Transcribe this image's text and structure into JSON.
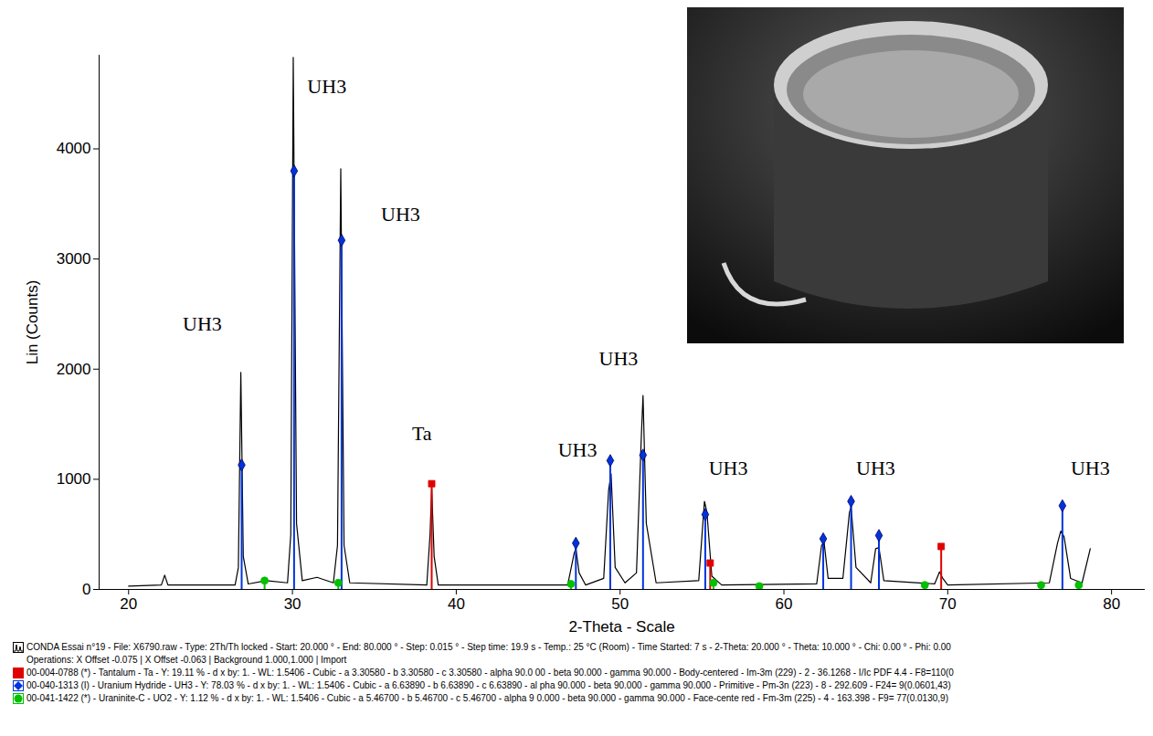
{
  "chart_data": {
    "type": "line",
    "xlabel": "2-Theta - Scale",
    "ylabel": "Lin (Counts)",
    "xlim": [
      18.2,
      82.0
    ],
    "xticks": [
      20,
      30,
      40,
      50,
      60,
      70,
      80
    ],
    "ylim": [
      0,
      4850
    ],
    "yticks": [
      0,
      1000,
      2000,
      3000,
      4000
    ],
    "grid": false,
    "caption": "Operations: X Offset -0.075 | X Offset -0.063 | Background 1.000,1.000 | Import",
    "series": [
      {
        "name": "CONDA Essai n°19 - File: X6790.raw - Type: 2Th/Th locked - Start: 20.000 ° - End: 80.000 ° - Step: 0.015 ° - Step time: 19.9 s - Temp.: 25 °C (Room) - Time Started: 7 s - 2-Theta: 20.000 ° - Theta: 10.000 ° - Chi: 0.00 ° - Phi: 0.00",
        "type": "line",
        "color": "#000000",
        "x": [
          20,
          22,
          22.2,
          22.4,
          26.5,
          26.7,
          26.85,
          27.0,
          27.3,
          28.4,
          29.7,
          29.9,
          30.05,
          30.25,
          30.6,
          31.5,
          32.5,
          32.75,
          32.95,
          33.15,
          33.5,
          38.2,
          38.4,
          38.5,
          38.65,
          38.9,
          46.8,
          47.2,
          47.3,
          47.5,
          47.9,
          49.0,
          49.3,
          49.45,
          49.7,
          50.3,
          51.0,
          51.3,
          51.4,
          51.6,
          52.2,
          54.8,
          55.15,
          55.3,
          55.6,
          56.2,
          62.0,
          62.3,
          62.45,
          62.7,
          63.6,
          64.0,
          64.1,
          64.4,
          65.3,
          65.6,
          65.8,
          66.1,
          69.2,
          69.5,
          69.7,
          70.0,
          76.2,
          76.7,
          76.9,
          77.1,
          77.5,
          78.2,
          78.7
        ],
        "values": [
          30,
          40,
          130,
          40,
          40,
          200,
          1970,
          300,
          50,
          80,
          60,
          500,
          4830,
          600,
          80,
          110,
          60,
          400,
          3820,
          400,
          60,
          40,
          500,
          920,
          300,
          40,
          40,
          330,
          370,
          150,
          40,
          100,
          900,
          1050,
          200,
          60,
          150,
          1400,
          1760,
          600,
          60,
          80,
          800,
          700,
          120,
          40,
          50,
          400,
          430,
          100,
          100,
          700,
          750,
          200,
          60,
          370,
          380,
          80,
          50,
          160,
          100,
          40,
          60,
          420,
          530,
          480,
          100,
          60,
          370
        ]
      },
      {
        "name": "00-004-0788 (*) - Tantalum - Ta - Y: 19.11 % - d x by: 1. - WL: 1.5406 - Cubic - a 3.30580 - b 3.30580 - c 3.30580 - alpha 90.0 00 - beta 90.000 - gamma 90.000 - Body-centered - Im-3m (229) - 2 - 36.1268 - I/Ic PDF 4.4 - F8=110(0",
        "type": "stick",
        "color": "#e00000",
        "marker": "square",
        "x": [
          38.5,
          55.5,
          69.6
        ],
        "values": [
          960,
          240,
          390
        ]
      },
      {
        "name": "00-040-1313 (I) - Uranium Hydride - UH3 - Y: 78.03 % - d x by: 1. - WL: 1.5406 - Cubic - a 6.63890 - b 6.63890 - c 6.63890 - al pha 90.000 - beta 90.000 - gamma 90.000 - Primitive - Pm-3n (223) - 8 - 292.609 - F24= 9(0.0601,43)",
        "type": "stick",
        "color": "#0033dd",
        "marker": "diamond",
        "x": [
          26.9,
          30.1,
          33.0,
          47.3,
          49.4,
          51.4,
          55.2,
          62.4,
          64.1,
          65.8,
          77.0
        ],
        "values": [
          1130,
          3800,
          3170,
          420,
          1170,
          1220,
          680,
          460,
          800,
          490,
          760
        ]
      },
      {
        "name": "00-041-1422 (*) - Uraninite-C - UO2 - Y: 1.12 % - d x by: 1. - WL: 1.5406 - Cubic - a 5.46700 - b 5.46700 - c 5.46700 - alpha 9 0.000 - beta 90.000 - gamma 90.000 - Face-cente red - Fm-3m (225) - 4 - 163.398 - F9= 77(0.0130,9)",
        "type": "stick",
        "color": "#00c000",
        "marker": "circle",
        "x": [
          28.3,
          32.8,
          47.0,
          55.7,
          58.5,
          68.6,
          75.7,
          78.0
        ],
        "values": [
          80,
          60,
          50,
          60,
          30,
          40,
          40,
          40
        ]
      }
    ],
    "annotations": [
      {
        "text": "UH3",
        "x": 24.5,
        "y": 2407
      },
      {
        "text": "UH3",
        "x": 32.1,
        "y": 4564
      },
      {
        "text": "UH3",
        "x": 36.6,
        "y": 3402
      },
      {
        "text": "Ta",
        "x": 37.9,
        "y": 1411
      },
      {
        "text": "UH3",
        "x": 49.9,
        "y": 2091
      },
      {
        "text": "UH3",
        "x": 47.4,
        "y": 1261
      },
      {
        "text": "UH3",
        "x": 56.6,
        "y": 1095
      },
      {
        "text": "UH3",
        "x": 65.6,
        "y": 1095
      },
      {
        "text": "UH3",
        "x": 78.7,
        "y": 1095
      }
    ]
  }
}
